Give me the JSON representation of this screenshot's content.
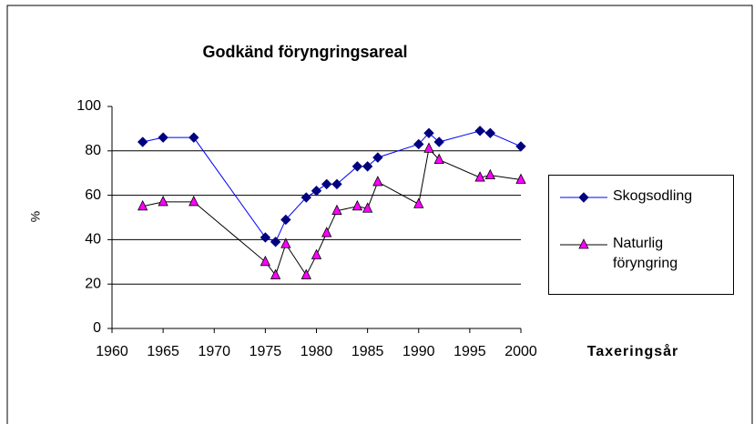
{
  "chart_data": {
    "type": "line",
    "title": "Godkänd föryngringsareal",
    "x_label": "Taxeringsår",
    "y_label": "%",
    "x": [
      1963,
      1965,
      1968,
      1975,
      1976,
      1977,
      1979,
      1980,
      1981,
      1982,
      1984,
      1985,
      1986,
      1990,
      1991,
      1992,
      1996,
      1997,
      2000
    ],
    "series": [
      {
        "name": "Skogsodling",
        "color": "#000080",
        "marker": "diamond",
        "values": [
          84,
          86,
          86,
          41,
          39,
          49,
          59,
          62,
          65,
          65,
          73,
          73,
          77,
          83,
          88,
          84,
          89,
          88,
          82
        ]
      },
      {
        "name": "Naturlig föryngring",
        "color": "#ff00ff",
        "marker": "triangle",
        "values": [
          55,
          57,
          57,
          30,
          24,
          38,
          24,
          33,
          43,
          53,
          55,
          54,
          66,
          56,
          81,
          76,
          68,
          69,
          67
        ]
      }
    ],
    "xlim": [
      1960,
      2000
    ],
    "xticks": [
      1960,
      1965,
      1970,
      1975,
      1980,
      1985,
      1990,
      1995,
      2000
    ],
    "ylim": [
      0,
      100
    ],
    "yticks": [
      0,
      20,
      40,
      60,
      80,
      100
    ],
    "grid": true,
    "legend": "right"
  }
}
